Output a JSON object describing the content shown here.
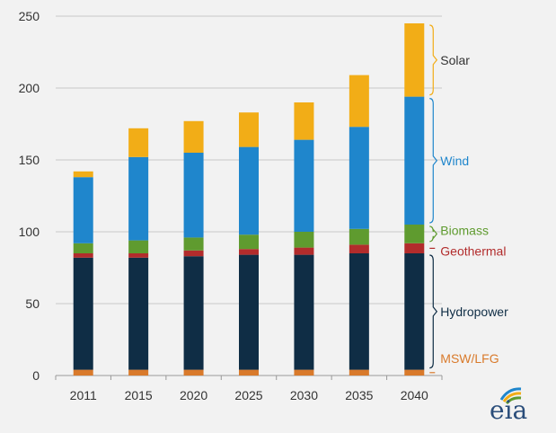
{
  "chart_data": {
    "type": "bar",
    "stacked": true,
    "title": "",
    "xlabel": "",
    "ylabel": "",
    "ylim": [
      0,
      250
    ],
    "yticks": [
      0,
      50,
      100,
      150,
      200,
      250
    ],
    "grid": true,
    "categories": [
      "2011",
      "2015",
      "2020",
      "2025",
      "2030",
      "2035",
      "2040"
    ],
    "series": [
      {
        "name": "MSW/LFG",
        "color": "#d97a2b",
        "values": [
          4,
          4,
          4,
          4,
          4,
          4,
          4
        ]
      },
      {
        "name": "Hydropower",
        "color": "#0f2d45",
        "values": [
          78,
          78,
          79,
          80,
          80,
          81,
          81
        ]
      },
      {
        "name": "Geothermal",
        "color": "#b22c2c",
        "values": [
          3,
          3,
          4,
          4,
          5,
          6,
          7
        ]
      },
      {
        "name": "Biomass",
        "color": "#5f9b2f",
        "values": [
          7,
          9,
          9,
          10,
          11,
          11,
          13
        ]
      },
      {
        "name": "Wind",
        "color": "#1f86cc",
        "values": [
          46,
          58,
          59,
          61,
          64,
          71,
          89
        ]
      },
      {
        "name": "Solar",
        "color": "#f2ad17",
        "values": [
          4,
          20,
          22,
          24,
          26,
          36,
          51
        ]
      }
    ],
    "legend": {
      "placement": "right-inline",
      "items": [
        {
          "label": "Solar",
          "color": "#333333"
        },
        {
          "label": "Wind",
          "color": "#1f86cc"
        },
        {
          "label": "Biomass",
          "color": "#5f9b2f"
        },
        {
          "label": "Geothermal",
          "color": "#b22c2c"
        },
        {
          "label": "Hydropower",
          "color": "#0f2d45"
        },
        {
          "label": "MSW/LFG",
          "color": "#d97a2b"
        }
      ]
    }
  },
  "logo": {
    "text": "eia",
    "icon": "eia-logo-arcs-icon",
    "colors": [
      "#1f86cc",
      "#f2ad17",
      "#5f9b2f"
    ]
  }
}
